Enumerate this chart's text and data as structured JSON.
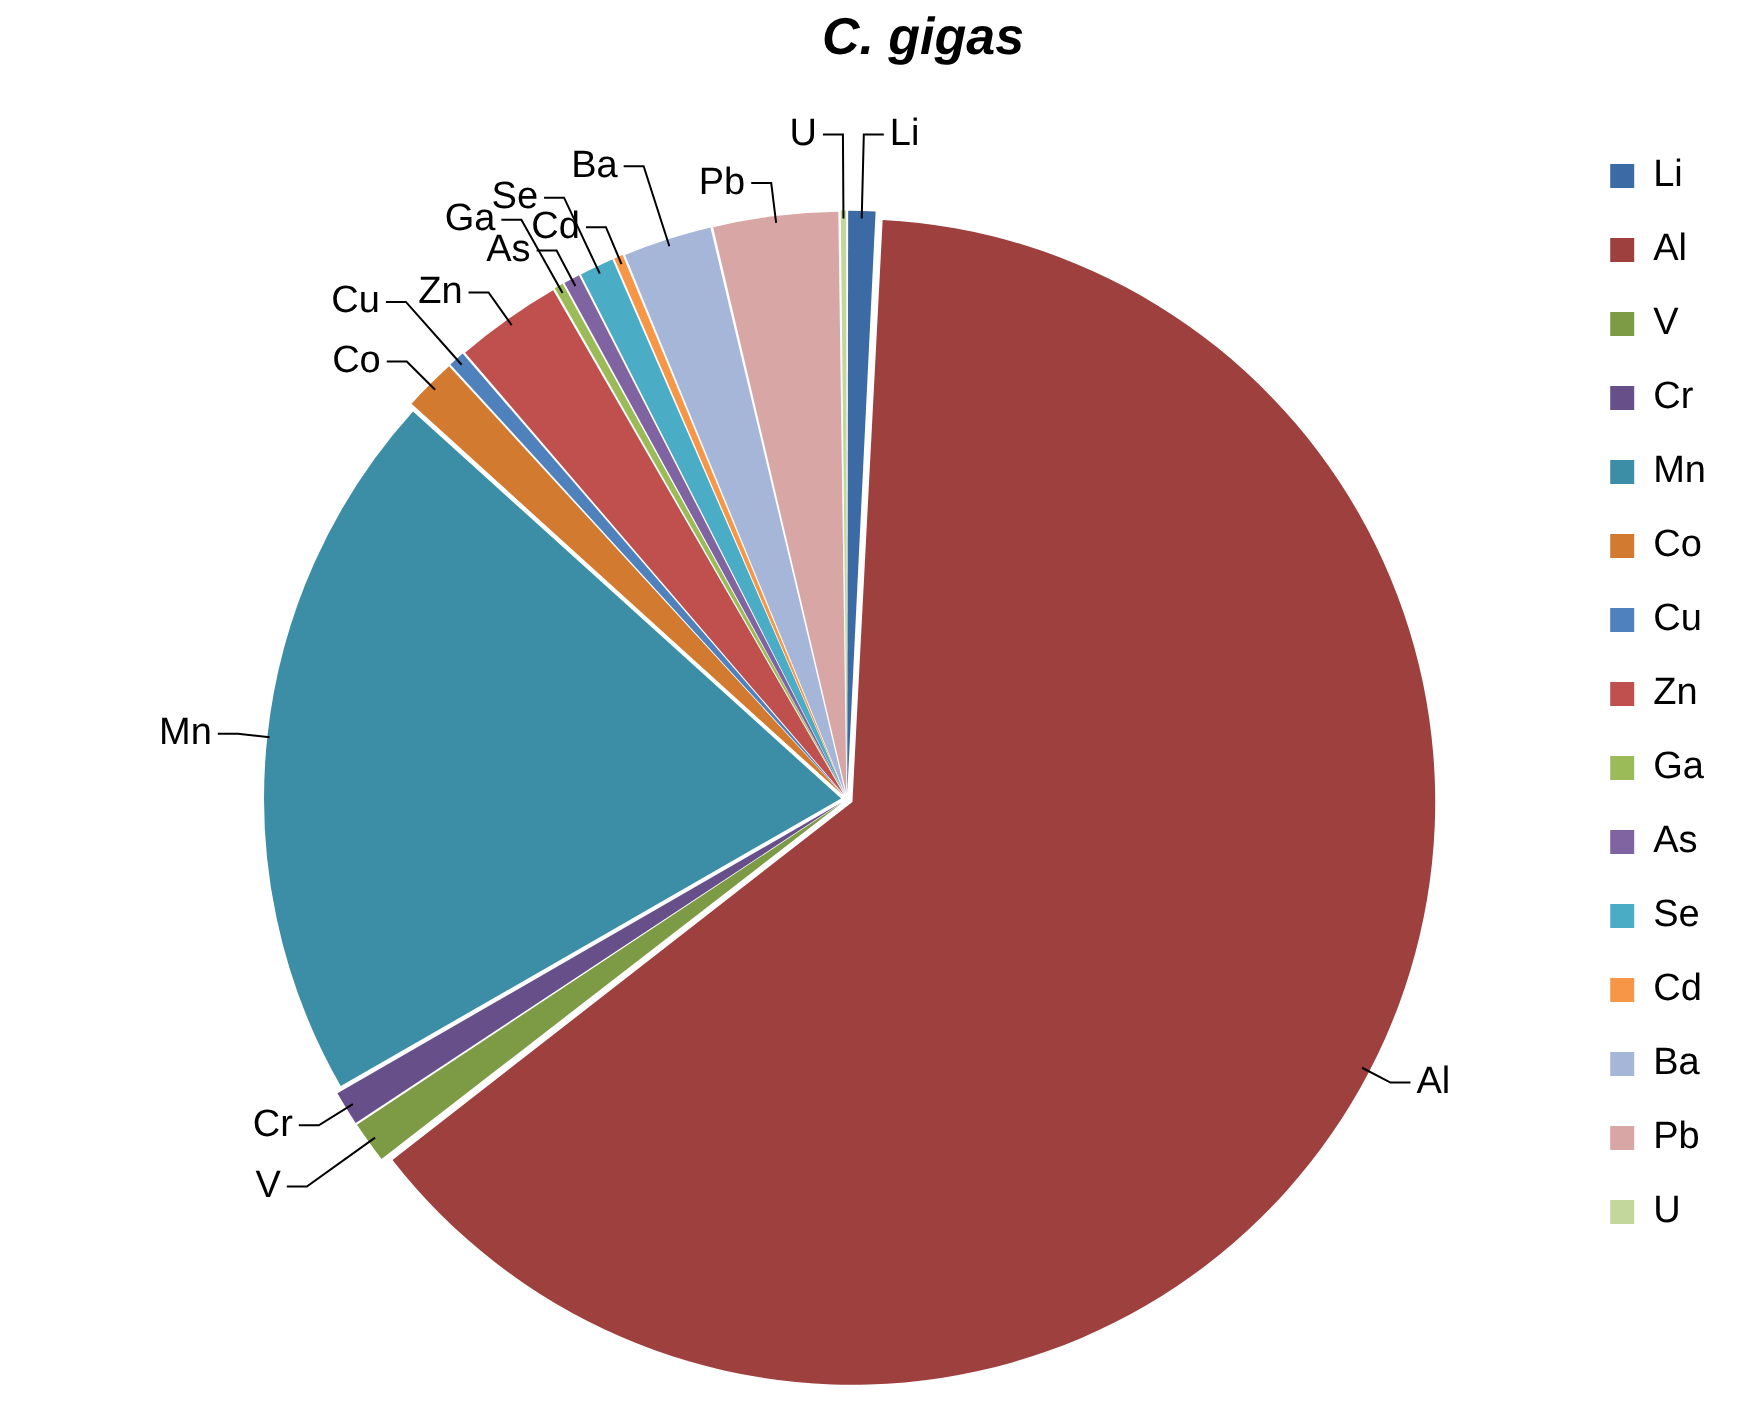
{
  "chart_data": {
    "type": "pie",
    "title": "C. gigas",
    "categories": [
      "Li",
      "Al",
      "V",
      "Cr",
      "Mn",
      "Co",
      "Cu",
      "Zn",
      "Ga",
      "As",
      "Se",
      "Cd",
      "Ba",
      "Pb",
      "U"
    ],
    "values": [
      0.8,
      63.7,
      1.2,
      1,
      20,
      1.5,
      0.5,
      3,
      0.3,
      0.5,
      1,
      0.3,
      2.5,
      3.5,
      0.2
    ],
    "colors": [
      "#3c6aa5",
      "#9e413e",
      "#7d9b45",
      "#67508a",
      "#3b8ea5",
      "#d27b30",
      "#4f81bd",
      "#c0504d",
      "#9bbb59",
      "#8064a2",
      "#4bacc6",
      "#f79646",
      "#a5b6d9",
      "#d9a6a6",
      "#c3d69b"
    ],
    "legend": "right"
  }
}
